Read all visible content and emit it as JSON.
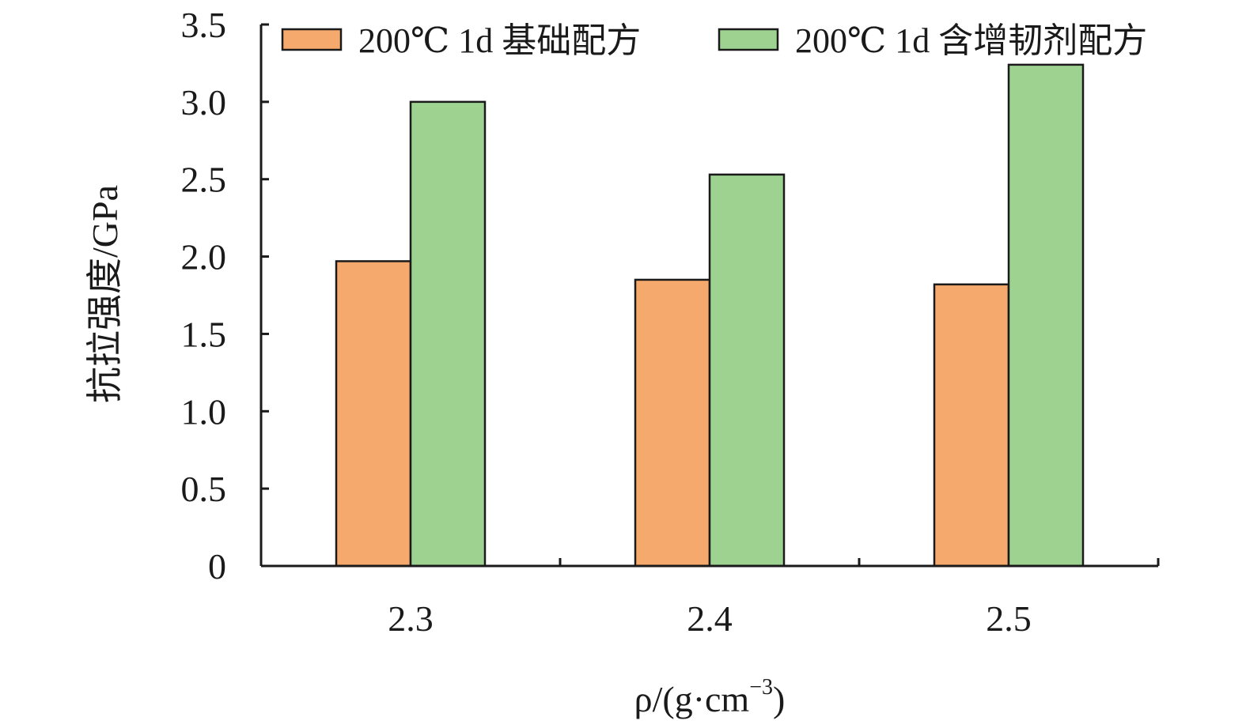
{
  "chart_data": {
    "type": "bar",
    "categories": [
      "2.3",
      "2.4",
      "2.5"
    ],
    "series": [
      {
        "name": "200℃ 1d 基础配方",
        "values": [
          1.97,
          1.85,
          1.82
        ],
        "color": "#f5a96c"
      },
      {
        "name": "200℃ 1d 含增韧剂配方",
        "values": [
          3.0,
          2.53,
          3.24
        ],
        "color": "#9ed291"
      }
    ],
    "xlabel": {
      "base": "ρ/(g·cm",
      "sup": "−3",
      "tail": ")"
    },
    "ylabel": "抗拉强度/GPa",
    "ylim": [
      0,
      3.5
    ],
    "yticks": [
      "0",
      "0.5",
      "1.0",
      "1.5",
      "2.0",
      "2.5",
      "3.0",
      "3.5"
    ],
    "grid": false,
    "legend_position": "top"
  }
}
